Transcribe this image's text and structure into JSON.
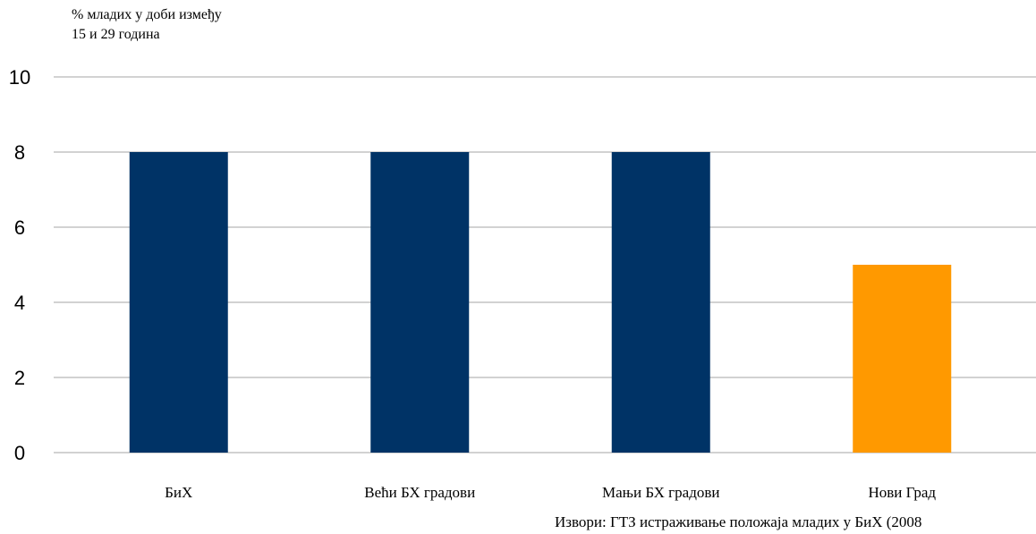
{
  "chart_data": {
    "type": "bar",
    "ylabel_lines": [
      "% младих у доби између",
      "15 и 29 година"
    ],
    "xlabel": "",
    "categories": [
      "БиХ",
      "Већи БХ градови",
      "Мањи БХ градови",
      "Нови Град"
    ],
    "values": [
      8,
      8,
      8,
      5
    ],
    "bar_colors": [
      "#003366",
      "#003366",
      "#003366",
      "#ff9900"
    ],
    "ylim": [
      0,
      10
    ],
    "yticks": [
      0,
      2,
      4,
      6,
      8,
      10
    ],
    "grid": true,
    "gridline_color": "#a6a6a6",
    "legend": "none"
  },
  "source_note": "Извори: ГТЗ истраживање положаја младих у БиХ (2008"
}
